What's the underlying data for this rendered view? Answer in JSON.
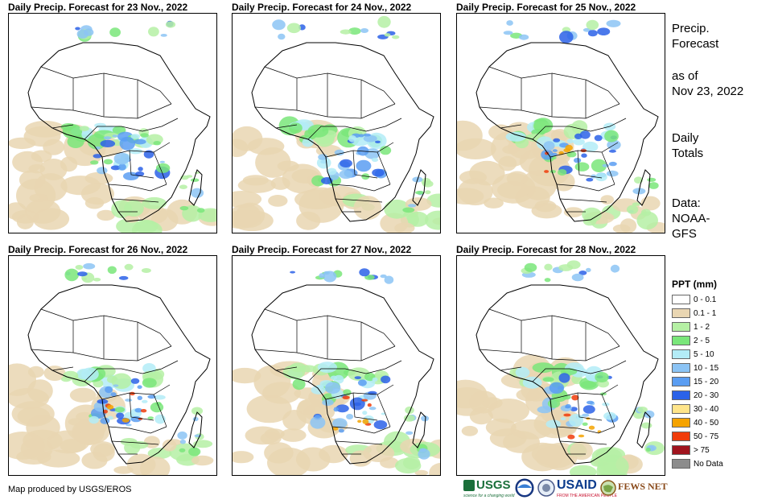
{
  "panels": [
    {
      "title": "Daily Precip. Forecast for 23 Nov., 2022"
    },
    {
      "title": "Daily Precip. Forecast for 24 Nov., 2022"
    },
    {
      "title": "Daily Precip. Forecast for 25 Nov., 2022"
    },
    {
      "title": "Daily Precip. Forecast for 26 Nov., 2022"
    },
    {
      "title": "Daily Precip. Forecast for 27 Nov., 2022"
    },
    {
      "title": "Daily Precip. Forecast for 28 Nov., 2022"
    }
  ],
  "side": {
    "heading_line1": "Precip.",
    "heading_line2": "Forecast",
    "asof_line1": "as of",
    "asof_line2": "Nov 23, 2022",
    "daily_line1": "Daily",
    "daily_line2": "Totals",
    "data_line1": "Data:",
    "data_line2": "NOAA-",
    "data_line3": "GFS"
  },
  "legend": {
    "title": "PPT (mm)",
    "items": [
      {
        "label": "0 - 0.1",
        "color": "#ffffff"
      },
      {
        "label": "0.1 - 1",
        "color": "#e9d6b2"
      },
      {
        "label": "1 - 2",
        "color": "#b5f0a4"
      },
      {
        "label": "2 - 5",
        "color": "#7ae67a"
      },
      {
        "label": "5 - 10",
        "color": "#b3ecf7"
      },
      {
        "label": "10 - 15",
        "color": "#8cc4f5"
      },
      {
        "label": "15 - 20",
        "color": "#5a9df2"
      },
      {
        "label": "20 - 30",
        "color": "#2b62e8"
      },
      {
        "label": "30 - 40",
        "color": "#ffe58a"
      },
      {
        "label": "40 - 50",
        "color": "#f5a300"
      },
      {
        "label": "50 - 75",
        "color": "#f03c0a"
      },
      {
        "label": "> 75",
        "color": "#a0141e"
      },
      {
        "label": "No Data",
        "color": "#8c8c8c"
      }
    ]
  },
  "credit": "Map produced by USGS/EROS",
  "logos": {
    "usgs": "USGS",
    "usgs_tagline": "science for a changing world",
    "usaid": "USAID",
    "usaid_tagline": "FROM THE AMERICAN PEOPLE",
    "fewsnet": "FEWS NET"
  }
}
